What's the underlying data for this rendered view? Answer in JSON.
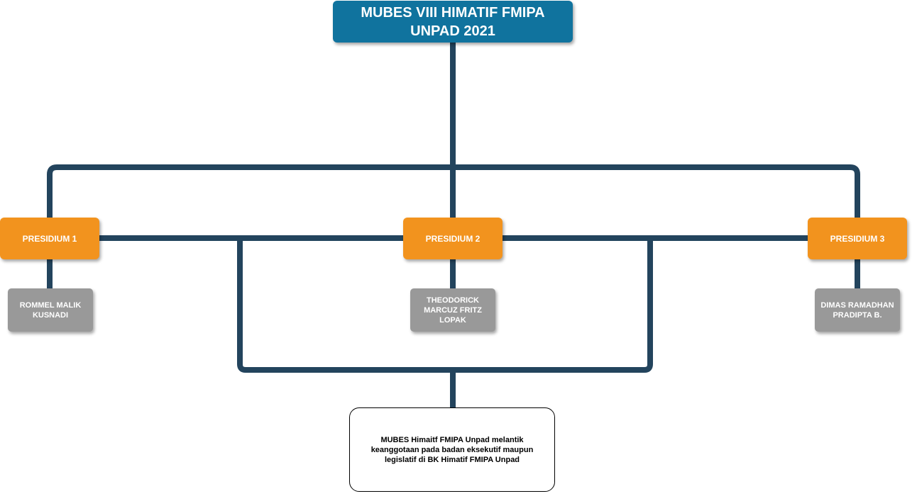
{
  "colors": {
    "connector": "#23445d",
    "title_fill": "#10739e",
    "presidium_fill": "#f2931e",
    "person_fill": "#999999",
    "note_fill": "#ffffff",
    "node_text": "#ffffff",
    "note_text": "#000000"
  },
  "title": {
    "text": "MUBES VIII HIMATIF FMIPA UNPAD 2021"
  },
  "presidiums": [
    {
      "label": "PRESIDIUM 1",
      "member": "ROMMEL MALIK KUSNADI"
    },
    {
      "label": "PRESIDIUM 2",
      "member": "THEODORICK MARCUZ FRITZ LOPAK"
    },
    {
      "label": "PRESIDIUM 3",
      "member": "DIMAS RAMADHAN PRADIPTA B."
    }
  ],
  "note": {
    "text": "MUBES Himaitf FMIPA Unpad melantik keanggotaan pada badan eksekutif maupun legislatif di BK Himatif FMIPA Unpad"
  }
}
